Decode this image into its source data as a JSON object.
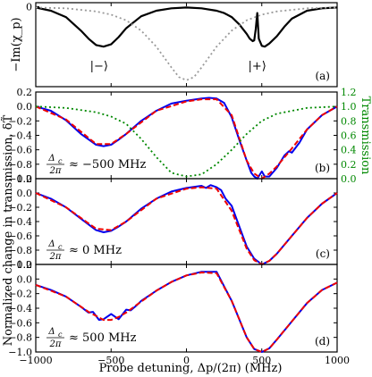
{
  "chart_data": [
    {
      "panel": "(a)",
      "type": "line",
      "ylabel": "−Im(χ_p)",
      "ytick_labels": [
        "0"
      ],
      "annotations": [
        "|−⟩",
        "|+⟩"
      ],
      "xlim": [
        -1000,
        1000
      ],
      "ylim": [
        -1.0,
        0.05
      ],
      "series": [
        {
          "style": "solid",
          "color": "#000000",
          "x": [
            -1000,
            -900,
            -800,
            -700,
            -650,
            -600,
            -550,
            -500,
            -450,
            -400,
            -300,
            -200,
            -100,
            0,
            100,
            200,
            250,
            300,
            350,
            400,
            420,
            440,
            450,
            460,
            470,
            480,
            500,
            520,
            550,
            600,
            650,
            700,
            800,
            900,
            1000
          ],
          "y": [
            -0.01,
            -0.05,
            -0.13,
            -0.3,
            -0.4,
            -0.48,
            -0.5,
            -0.47,
            -0.38,
            -0.27,
            -0.12,
            -0.05,
            -0.02,
            -0.01,
            -0.02,
            -0.05,
            -0.08,
            -0.13,
            -0.22,
            -0.34,
            -0.4,
            -0.43,
            -0.42,
            -0.28,
            -0.08,
            -0.4,
            -0.49,
            -0.5,
            -0.46,
            -0.37,
            -0.25,
            -0.15,
            -0.05,
            -0.02,
            -0.01
          ]
        },
        {
          "style": "dotted",
          "color": "#999999",
          "x": [
            -1000,
            -800,
            -600,
            -500,
            -400,
            -300,
            -200,
            -100,
            -50,
            0,
            50,
            100,
            200,
            300,
            400,
            500,
            600,
            800,
            1000
          ],
          "y": [
            -0.01,
            -0.02,
            -0.06,
            -0.1,
            -0.17,
            -0.3,
            -0.5,
            -0.76,
            -0.88,
            -0.92,
            -0.88,
            -0.76,
            -0.5,
            -0.3,
            -0.17,
            -0.1,
            -0.06,
            -0.02,
            -0.01
          ]
        }
      ]
    },
    {
      "panel": "(b)",
      "type": "line",
      "annotation": "≈ −500 MHz",
      "ylim": [
        -1.0,
        0.2
      ],
      "y2label": "Transmission",
      "y2lim": [
        0.0,
        1.2
      ],
      "y2tick_labels": [
        "0.0",
        "0.2",
        "0.4",
        "0.6",
        "0.8",
        "1.0",
        "1.2"
      ],
      "series": [
        {
          "style": "solid",
          "color": "#0000ee",
          "x": [
            -1000,
            -900,
            -800,
            -700,
            -600,
            -550,
            -500,
            -450,
            -400,
            -300,
            -200,
            -100,
            0,
            100,
            150,
            200,
            250,
            300,
            350,
            400,
            430,
            450,
            470,
            500,
            520,
            550,
            600,
            650,
            680,
            700,
            750,
            800,
            900,
            1000
          ],
          "y": [
            0.0,
            -0.06,
            -0.19,
            -0.38,
            -0.53,
            -0.55,
            -0.53,
            -0.46,
            -0.38,
            -0.2,
            -0.06,
            0.04,
            0.08,
            0.11,
            0.12,
            0.11,
            0.05,
            -0.15,
            -0.46,
            -0.75,
            -0.92,
            -0.97,
            -1.0,
            -0.9,
            -0.97,
            -0.97,
            -0.85,
            -0.68,
            -0.62,
            -0.64,
            -0.5,
            -0.32,
            -0.12,
            0.0
          ]
        },
        {
          "style": "dashed",
          "color": "#ee0000",
          "x": [
            -1000,
            -800,
            -600,
            -500,
            -400,
            -200,
            0,
            100,
            200,
            300,
            400,
            450,
            500,
            550,
            600,
            700,
            800,
            900,
            1000
          ],
          "y": [
            0.0,
            -0.18,
            -0.52,
            -0.52,
            -0.38,
            -0.06,
            0.07,
            0.1,
            0.1,
            -0.12,
            -0.75,
            -0.93,
            -1.0,
            -0.93,
            -0.83,
            -0.58,
            -0.32,
            -0.12,
            0.0
          ]
        },
        {
          "style": "dotted",
          "color": "#008800",
          "axis": "right",
          "x": [
            -1000,
            -800,
            -600,
            -500,
            -400,
            -300,
            -200,
            -100,
            0,
            100,
            200,
            300,
            400,
            500,
            600,
            800,
            1000
          ],
          "y": [
            1.0,
            0.98,
            0.92,
            0.86,
            0.76,
            0.55,
            0.3,
            0.08,
            0.03,
            0.06,
            0.2,
            0.4,
            0.62,
            0.8,
            0.9,
            0.98,
            1.0
          ]
        }
      ]
    },
    {
      "panel": "(c)",
      "type": "line",
      "annotation": "≈ 0 MHz",
      "ylim": [
        -1.0,
        0.2
      ],
      "series": [
        {
          "style": "solid",
          "color": "#0000ee",
          "x": [
            -1000,
            -900,
            -800,
            -700,
            -600,
            -550,
            -500,
            -450,
            -400,
            -300,
            -200,
            -100,
            0,
            100,
            130,
            160,
            200,
            230,
            260,
            300,
            400,
            450,
            500,
            550,
            600,
            700,
            800,
            900,
            1000
          ],
          "y": [
            0.0,
            -0.08,
            -0.2,
            -0.36,
            -0.52,
            -0.55,
            -0.53,
            -0.47,
            -0.4,
            -0.22,
            -0.08,
            0.02,
            0.07,
            0.1,
            0.07,
            0.11,
            0.08,
            0.04,
            -0.08,
            -0.18,
            -0.75,
            -0.92,
            -1.0,
            -0.95,
            -0.85,
            -0.6,
            -0.35,
            -0.15,
            0.0
          ]
        },
        {
          "style": "dashed",
          "color": "#ee0000",
          "x": [
            -1000,
            -800,
            -600,
            -500,
            -400,
            -200,
            0,
            100,
            200,
            300,
            400,
            450,
            500,
            550,
            600,
            700,
            800,
            900,
            1000
          ],
          "y": [
            0.0,
            -0.2,
            -0.5,
            -0.52,
            -0.4,
            -0.08,
            0.06,
            0.08,
            0.06,
            -0.25,
            -0.78,
            -0.94,
            -1.0,
            -0.95,
            -0.85,
            -0.6,
            -0.35,
            -0.15,
            0.0
          ]
        }
      ]
    },
    {
      "panel": "(d)",
      "type": "line",
      "annotation": "≈ 500 MHz",
      "ylim": [
        -1.0,
        0.2
      ],
      "series": [
        {
          "style": "solid",
          "color": "#0000ee",
          "x": [
            -1000,
            -900,
            -800,
            -700,
            -650,
            -620,
            -580,
            -550,
            -500,
            -450,
            -400,
            -370,
            -330,
            -300,
            -200,
            -100,
            0,
            100,
            200,
            300,
            400,
            450,
            500,
            550,
            600,
            700,
            800,
            900,
            1000
          ],
          "y": [
            -0.08,
            -0.15,
            -0.24,
            -0.38,
            -0.46,
            -0.45,
            -0.56,
            -0.55,
            -0.48,
            -0.55,
            -0.42,
            -0.43,
            -0.36,
            -0.3,
            -0.16,
            -0.04,
            0.05,
            0.1,
            0.1,
            -0.3,
            -0.8,
            -0.96,
            -1.0,
            -0.95,
            -0.83,
            -0.58,
            -0.33,
            -0.15,
            -0.05
          ]
        },
        {
          "style": "dashed",
          "color": "#ee0000",
          "x": [
            -1000,
            -800,
            -650,
            -550,
            -500,
            -450,
            -400,
            -300,
            -200,
            -100,
            0,
            100,
            200,
            300,
            400,
            450,
            500,
            550,
            600,
            700,
            800,
            900,
            1000
          ],
          "y": [
            -0.08,
            -0.24,
            -0.45,
            -0.56,
            -0.56,
            -0.52,
            -0.46,
            -0.31,
            -0.16,
            -0.04,
            0.05,
            0.09,
            0.08,
            -0.3,
            -0.8,
            -0.96,
            -1.0,
            -0.95,
            -0.83,
            -0.58,
            -0.33,
            -0.15,
            -0.05
          ]
        }
      ]
    }
  ],
  "shared": {
    "ylabel": "Normalized change in transmission, δT̃",
    "xlabel": "Probe detuning, Δp/(2π) (MHz)",
    "xtick_labels": [
      "−1000",
      "−500",
      "0",
      "500",
      "1000"
    ],
    "ytick_labels": [
      "0.2",
      "0.0",
      "−0.2",
      "−0.4",
      "−0.6",
      "−0.8",
      "−1.0"
    ],
    "annot_prefix": "Δc/2π"
  }
}
